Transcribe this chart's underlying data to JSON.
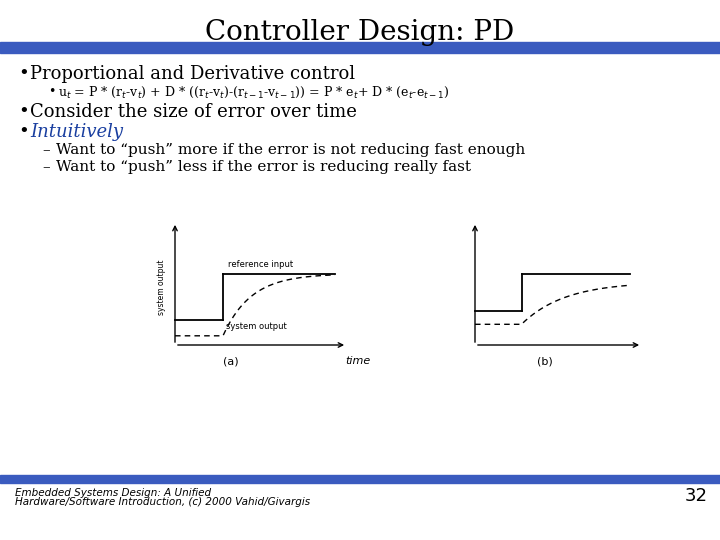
{
  "title": "Controller Design: PD",
  "title_fontsize": 20,
  "title_font": "serif",
  "bg_color": "#ffffff",
  "blue_bar_color": "#3a5bbf",
  "bullet1": "Proportional and Derivative control",
  "bullet1_size": 13,
  "sub_bullet1_size": 9,
  "bullet2": "Consider the size of error over time",
  "bullet2_size": 13,
  "bullet3": "Intuitively",
  "bullet3_size": 13,
  "dash1": "Want to “push” more if the error is not reducing fast enough",
  "dash1_size": 11,
  "dash2": "Want to “push” less if the error is reducing really fast",
  "dash2_size": 11,
  "footer1": "Embedded Systems Design: A Unified",
  "footer2": "Hardware/Software Introduction, (c) 2000 Vahid/Givargis",
  "footer_size": 7.5,
  "page_num": "32",
  "page_num_size": 13,
  "text_color": "#000000",
  "blue_text_color": "#1a3fa0",
  "diagram_color": "#000000"
}
